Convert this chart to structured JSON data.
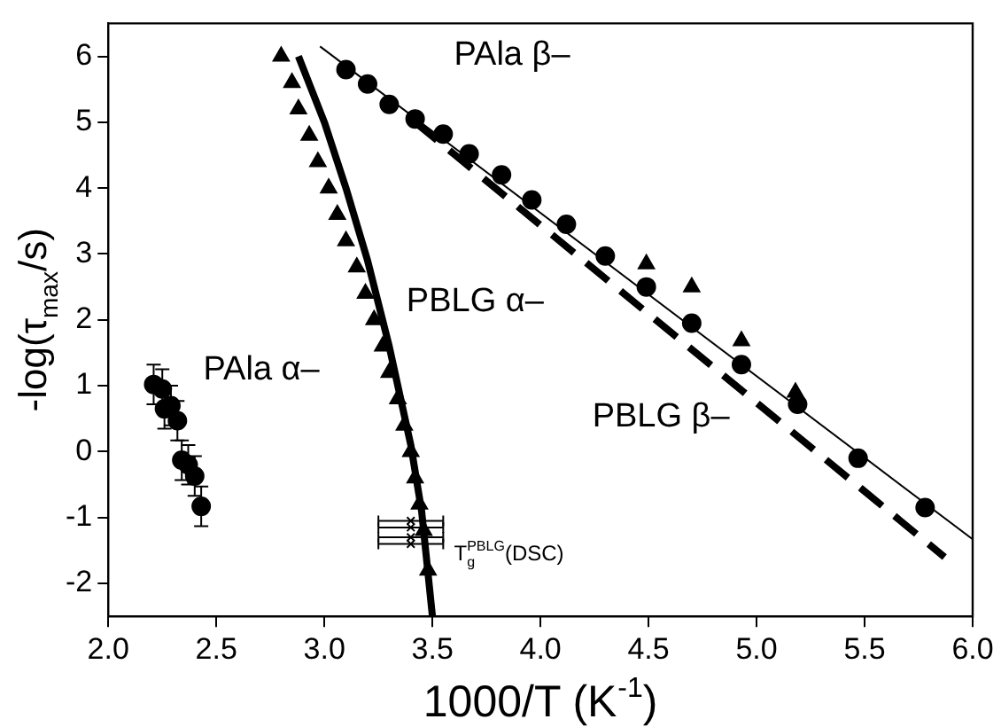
{
  "chart_data": {
    "type": "scatter",
    "xlabel": "1000/T (K$^{-1}$)",
    "ylabel": "-log(τ$_{max}$/s)",
    "xlim": [
      2.0,
      6.0
    ],
    "ylim": [
      -2.5,
      6.5
    ],
    "xticks": [
      {
        "value": 2,
        "label": "2.0"
      },
      {
        "value": 2.5,
        "label": "2.5"
      },
      {
        "value": 3,
        "label": "3.0"
      },
      {
        "value": 3.5,
        "label": "3.5"
      },
      {
        "value": 4,
        "label": "4.0"
      },
      {
        "value": 4.5,
        "label": "4.5"
      },
      {
        "value": 5,
        "label": "5.0"
      },
      {
        "value": 5.5,
        "label": "5.5"
      },
      {
        "value": 6,
        "label": "6.0"
      }
    ],
    "yticks": [
      -2,
      -1,
      0,
      1,
      2,
      3,
      4,
      5,
      6
    ],
    "grid": false,
    "legend": false,
    "series": [
      {
        "type": "scatter",
        "color": "#000000",
        "marker": "circle",
        "x": [
          2.21,
          2.25,
          2.26,
          2.29,
          2.32,
          2.34,
          2.37,
          2.4,
          2.43
        ],
        "values": [
          1.02,
          0.95,
          0.65,
          0.7,
          0.47,
          -0.13,
          -0.2,
          -0.37,
          -0.83
        ],
        "errors": [
          0.3,
          0.3,
          0.3,
          0.3,
          0.3,
          0.3,
          0.3,
          0.3,
          0.3
        ]
      },
      {
        "type": "scatter",
        "color": "#000000",
        "marker": "triangle",
        "x": [
          2.8,
          2.85,
          2.88,
          2.93,
          2.97,
          3.02,
          3.06,
          3.1,
          3.15,
          3.19,
          3.23,
          3.27,
          3.3,
          3.34,
          3.37,
          3.4,
          3.42,
          3.44,
          3.46,
          3.48
        ],
        "values": [
          6.0,
          5.6,
          5.2,
          4.8,
          4.4,
          4.0,
          3.6,
          3.2,
          2.8,
          2.4,
          2.0,
          1.6,
          1.2,
          0.8,
          0.4,
          0.0,
          -0.4,
          -0.8,
          -1.2,
          -1.8
        ]
      },
      {
        "type": "line",
        "color": "#000000",
        "marker": "none",
        "x": [
          2.88,
          3.0,
          3.1,
          3.2,
          3.3,
          3.4,
          3.45,
          3.5
        ],
        "values": [
          6.0,
          5.0,
          4.0,
          2.9,
          1.6,
          0.1,
          -0.9,
          -2.5
        ]
      },
      {
        "type": "scatter",
        "color": "#000000",
        "marker": "cross",
        "x": [
          3.4,
          3.4,
          3.4,
          3.4
        ],
        "values": [
          -1.05,
          -1.15,
          -1.3,
          -1.4
        ],
        "xerrors": [
          0.15,
          0.15,
          0.15,
          0.15
        ]
      },
      {
        "type": "scatter",
        "color": "#000000",
        "marker": "circle",
        "x": [
          3.1,
          3.2,
          3.3,
          3.42,
          3.55,
          3.67,
          3.82,
          3.96,
          4.12,
          4.3,
          4.49,
          4.7,
          4.93,
          5.19,
          5.47,
          5.78
        ],
        "values": [
          5.8,
          5.58,
          5.27,
          5.05,
          4.82,
          4.52,
          4.2,
          3.82,
          3.45,
          2.97,
          2.5,
          1.95,
          1.32,
          0.72,
          -0.1,
          -0.85
        ]
      },
      {
        "type": "line",
        "color": "#000000",
        "marker": "none",
        "x": [
          2.98,
          6.0
        ],
        "values": [
          6.15,
          -1.33
        ]
      },
      {
        "type": "scatter",
        "color": "#000000",
        "marker": "triangle",
        "x": [
          4.49,
          4.7,
          4.93,
          5.18
        ],
        "values": [
          2.85,
          2.5,
          1.68,
          0.9
        ]
      },
      {
        "type": "line",
        "color": "#000000",
        "marker": "none",
        "line_style": "dashed",
        "x": [
          3.42,
          5.87
        ],
        "values": [
          5.0,
          -1.6
        ]
      }
    ],
    "annotations": [
      "PAla β–",
      "PBLG α–",
      "PAla α–",
      "PBLG β–",
      "T$_{g}$$^{PBLG}$(DSC)"
    ]
  }
}
